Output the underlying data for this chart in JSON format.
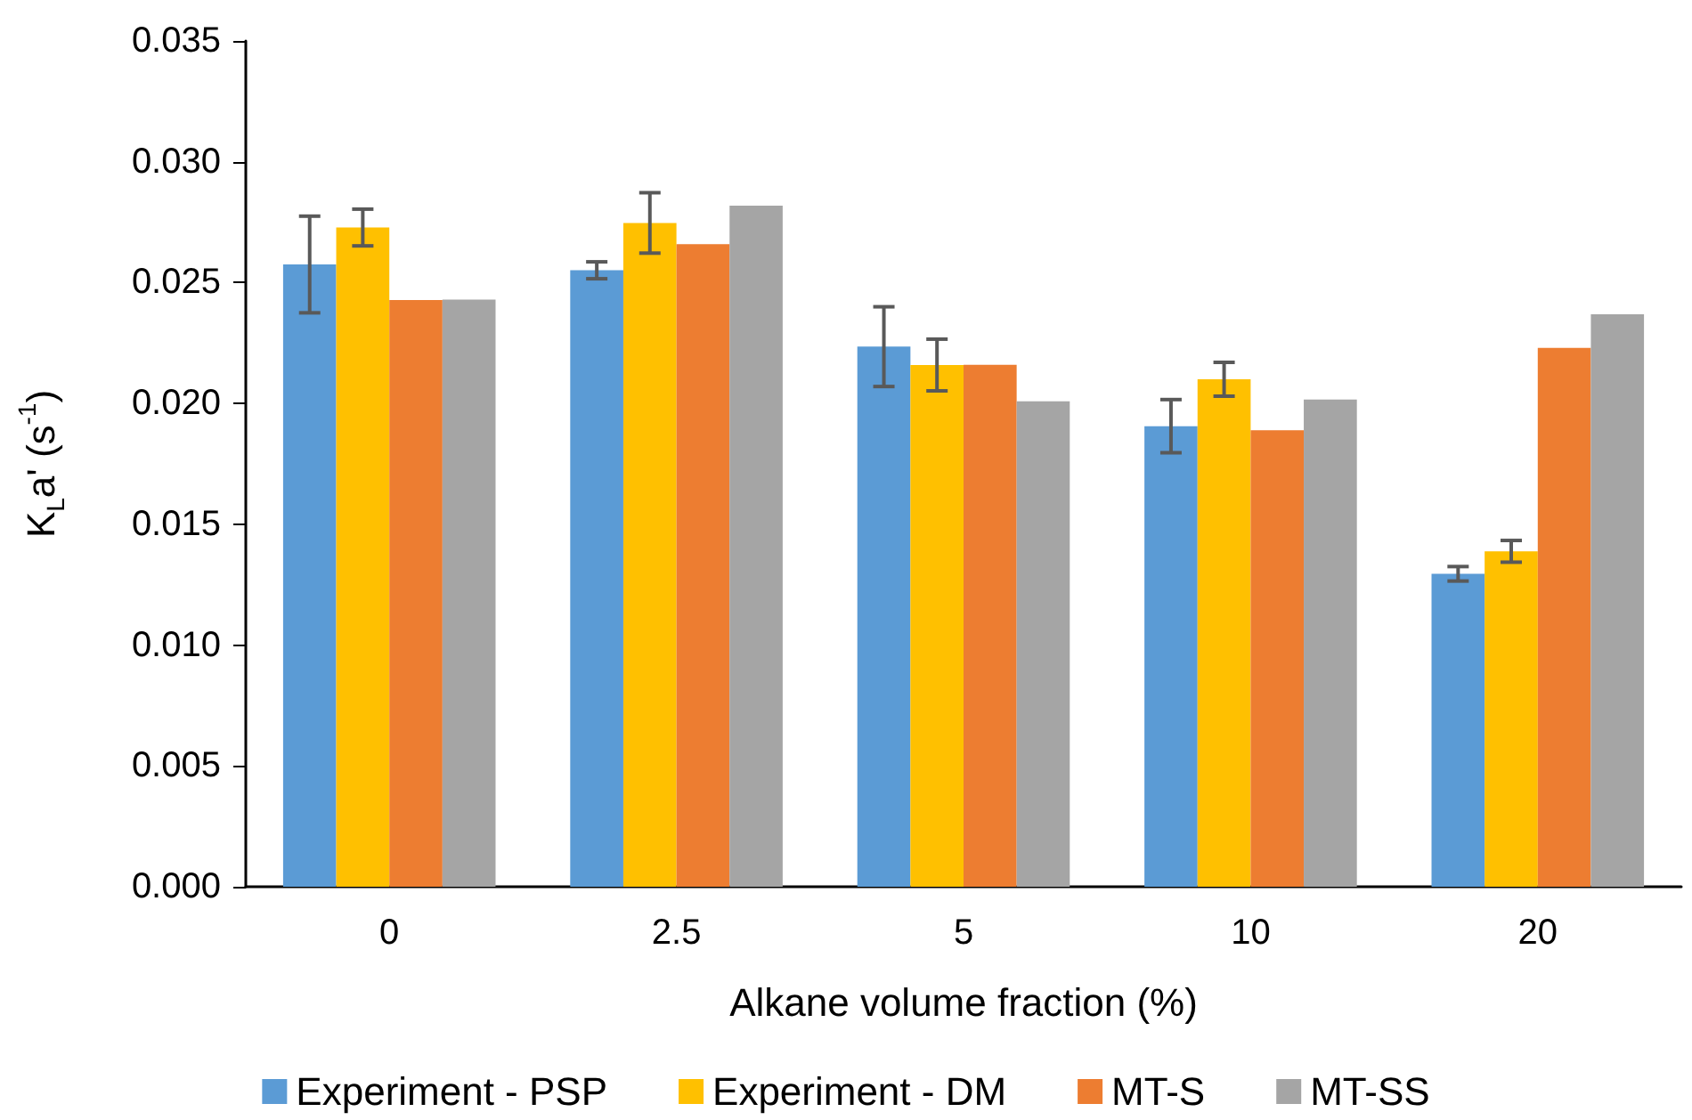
{
  "chart_data": {
    "type": "bar",
    "xlabel": "Alkane volume fraction (%)",
    "ylabel": "K$_{L}$a' (s$^{-1}$)",
    "categories": [
      "0",
      "2.5",
      "5",
      "10",
      "20"
    ],
    "series": [
      {
        "name": "Experiment - PSP",
        "color": "#5b9bd5",
        "values": [
          0.02575,
          0.02551,
          0.02235,
          0.01906,
          0.01295
        ],
        "errors": [
          0.002,
          0.00035,
          0.00165,
          0.0011,
          0.0003
        ]
      },
      {
        "name": "Experiment - DM",
        "color": "#ffc000",
        "values": [
          0.02728,
          0.02747,
          0.02159,
          0.021,
          0.01388
        ],
        "errors": [
          0.00076,
          0.00125,
          0.00107,
          0.0007,
          0.00045
        ]
      },
      {
        "name": "MT-S",
        "color": "#ed7d31",
        "values": [
          0.02428,
          0.02659,
          0.0216,
          0.01889,
          0.0223
        ]
      },
      {
        "name": "MT-SS",
        "color": "#a5a5a5",
        "values": [
          0.0243,
          0.02818,
          0.02009,
          0.02016,
          0.02369
        ]
      }
    ],
    "ylim": [
      0,
      0.035
    ],
    "yticks": [
      {
        "value": 0,
        "label": "0.000"
      },
      {
        "value": 0.005,
        "label": "0.005"
      },
      {
        "value": 0.01,
        "label": "0.010"
      },
      {
        "value": 0.015,
        "label": "0.015"
      },
      {
        "value": 0.02,
        "label": "0.020"
      },
      {
        "value": 0.025,
        "label": "0.025"
      },
      {
        "value": 0.03,
        "label": "0.030"
      },
      {
        "value": 0.035,
        "label": "0.035"
      }
    ],
    "grid": false,
    "legend": "bottom"
  }
}
